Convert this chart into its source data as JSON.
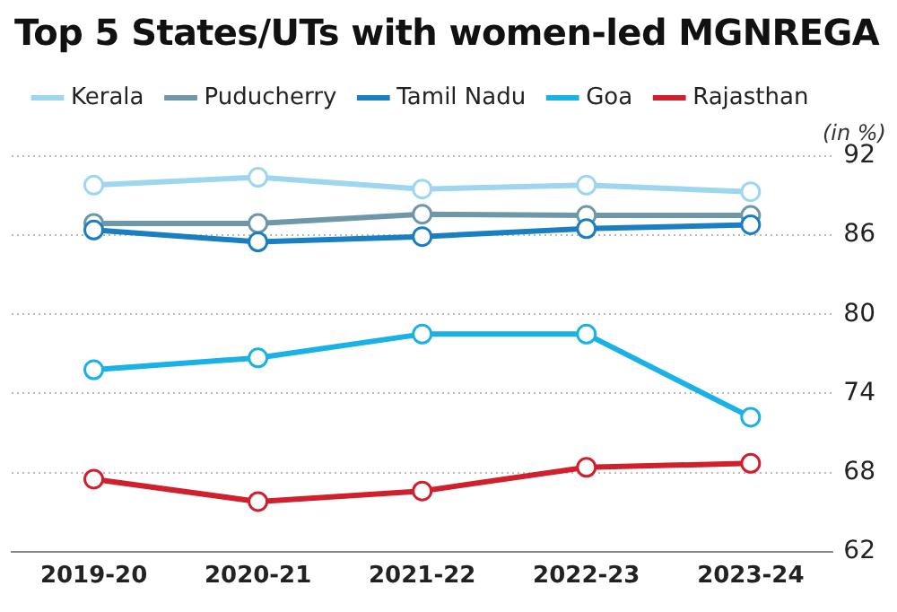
{
  "chart_data": {
    "type": "line",
    "title": "Top 5 States/UTs with women-led MGNREGA",
    "ylabel": "(in %)",
    "categories": [
      "2019-20",
      "2020-21",
      "2021-22",
      "2022-23",
      "2023-24"
    ],
    "series": [
      {
        "name": "Kerala",
        "color": "#9fd6ef",
        "values": [
          89.8,
          90.4,
          89.5,
          89.8,
          89.3
        ]
      },
      {
        "name": "Puducherry",
        "color": "#6e98a8",
        "values": [
          86.9,
          86.9,
          87.6,
          87.5,
          87.5
        ]
      },
      {
        "name": "Tamil Nadu",
        "color": "#1a7fc0",
        "values": [
          86.4,
          85.5,
          85.9,
          86.5,
          86.8
        ]
      },
      {
        "name": "Goa",
        "color": "#1ab2e6",
        "values": [
          75.8,
          76.7,
          78.5,
          78.5,
          72.2
        ]
      },
      {
        "name": "Rajasthan",
        "color": "#d0202e",
        "values": [
          67.5,
          65.8,
          66.6,
          68.4,
          68.7
        ]
      }
    ],
    "ylim": [
      62,
      92
    ],
    "yticks": [
      62,
      68,
      74,
      80,
      86,
      92
    ],
    "grid": "y",
    "legend": "top left",
    "marker": "circle",
    "line_style": "solid"
  }
}
